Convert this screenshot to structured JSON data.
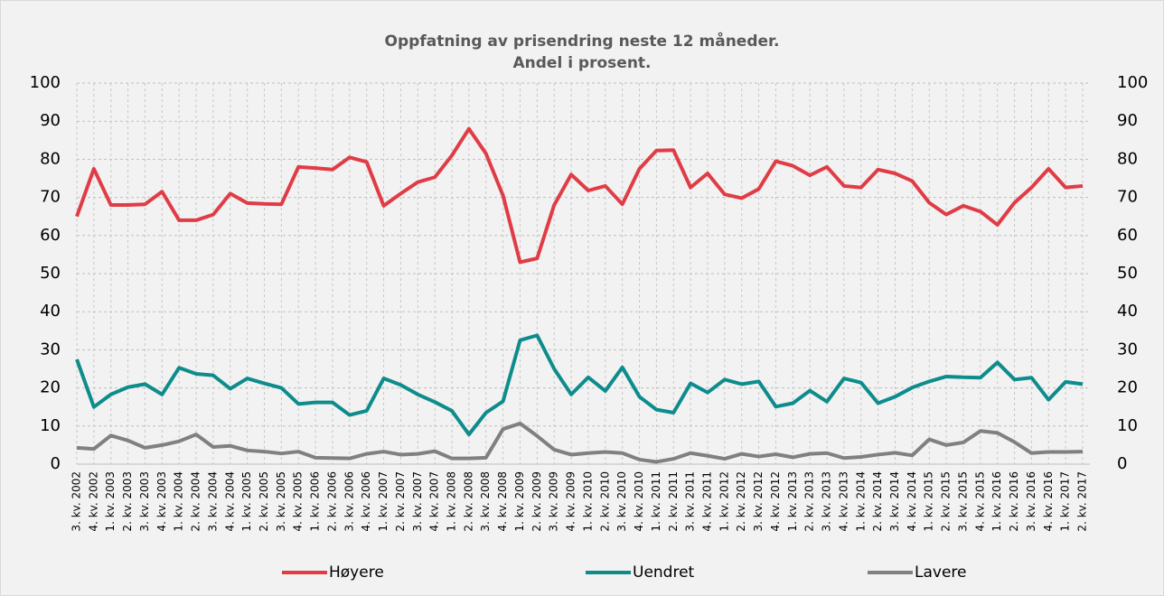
{
  "chart_data": {
    "type": "line",
    "title": [
      "Oppfatning av prisendring neste 12 måneder.",
      "Andel i prosent."
    ],
    "categories": [
      "3. kv. 2002",
      "4. kv. 2002",
      "1. kv. 2003",
      "2. kv. 2003",
      "3. kv. 2003",
      "4. kv. 2003",
      "1. kv. 2004",
      "2. kv. 2004",
      "3. kv. 2004",
      "4. kv. 2004",
      "1. kv. 2005",
      "2. kv. 2005",
      "3. kv. 2005",
      "4. kv. 2005",
      "1. kv. 2006",
      "2. kv. 2006",
      "3. kv. 2006",
      "4. kv. 2006",
      "1. kv. 2007",
      "2. kv. 2007",
      "3. kv. 2007",
      "4. kv. 2007",
      "1. kv. 2008",
      "2. kv. 2008",
      "3. kv. 2008",
      "4. kv. 2008",
      "1. kv. 2009",
      "2. kv. 2009",
      "3. kv. 2009",
      "4. kv. 2009",
      "1. kv. 2010",
      "2. kv. 2010",
      "3. kv. 2010",
      "4. kv. 2010",
      "1. kv. 2011",
      "2. kv. 2011",
      "3. kv. 2011",
      "4. kv. 2011",
      "1. kv. 2012",
      "2. kv. 2012",
      "3. kv. 2012",
      "4. kv. 2012",
      "1. kv. 2013",
      "2. kv. 2013",
      "3. kv. 2013",
      "4. kv. 2013",
      "1. kv. 2014",
      "2. kv. 2014",
      "3. kv. 2014",
      "4. kv. 2014",
      "1. kv. 2015",
      "2. kv. 2015",
      "3. kv. 2015",
      "4. kv. 2015",
      "1. kv. 2016",
      "2. kv. 2016",
      "3. kv. 2016",
      "4. kv. 2016",
      "1. kv. 2017",
      "2. kv. 2017"
    ],
    "series": [
      {
        "name": "Høyere",
        "color": "#e03c46",
        "values": [
          65,
          77.5,
          68,
          68,
          68.2,
          71.5,
          64,
          64,
          65.5,
          71,
          68.5,
          68.3,
          68.2,
          78,
          77.7,
          77.3,
          80.5,
          79.3,
          67.8,
          71,
          74,
          75.3,
          81,
          88,
          81.5,
          70.5,
          53,
          54,
          68,
          76,
          71.8,
          73,
          68.2,
          77.5,
          82.3,
          82.4,
          72.6,
          76.3,
          70.8,
          69.8,
          72.2,
          79.5,
          78.3,
          75.8,
          78,
          73,
          72.6,
          77.3,
          76.3,
          74.3,
          68.6,
          65.5,
          67.8,
          66.3,
          62.8,
          68.6,
          72.6,
          77.5,
          72.6,
          73
        ]
      },
      {
        "name": "Uendret",
        "color": "#0e8c8c",
        "values": [
          27.5,
          15,
          18.3,
          20.2,
          21,
          18.3,
          25.3,
          23.7,
          23.3,
          19.8,
          22.5,
          21.2,
          20,
          15.8,
          16.2,
          16.2,
          12.9,
          14,
          22.5,
          20.8,
          18.3,
          16.3,
          14,
          7.8,
          13.5,
          16.5,
          32.5,
          33.8,
          25,
          18.3,
          22.8,
          19.2,
          25.4,
          17.7,
          14.3,
          13.5,
          21.2,
          18.8,
          22.2,
          21,
          21.7,
          15.1,
          16,
          19.3,
          16.4,
          22.5,
          21.4,
          16,
          17.7,
          20.1,
          21.7,
          23,
          22.8,
          22.7,
          26.7,
          22.2,
          22.7,
          16.9,
          21.6,
          21
        ]
      },
      {
        "name": "Lavere",
        "color": "#808080",
        "values": [
          4.3,
          4,
          7.5,
          6.2,
          4.3,
          5,
          6,
          7.8,
          4.5,
          4.8,
          3.6,
          3.3,
          2.8,
          3.3,
          1.7,
          1.6,
          1.5,
          2.7,
          3.3,
          2.5,
          2.7,
          3.4,
          1.5,
          1.5,
          1.7,
          9.2,
          10.7,
          7.4,
          3.8,
          2.5,
          2.9,
          3.2,
          2.9,
          1.2,
          0.6,
          1.4,
          2.9,
          2.2,
          1.4,
          2.7,
          2,
          2.6,
          1.8,
          2.7,
          2.9,
          1.6,
          1.9,
          2.5,
          3,
          2.3,
          6.5,
          5,
          5.7,
          8.7,
          8.2,
          5.8,
          2.9,
          3.2,
          3.2,
          3.3
        ]
      }
    ],
    "ylim": [
      0,
      100
    ],
    "yticks": [
      0,
      10,
      20,
      30,
      40,
      50,
      60,
      70,
      80,
      90,
      100
    ],
    "y2lim": [
      0,
      100
    ],
    "y2ticks": [
      0,
      10,
      20,
      30,
      40,
      50,
      60,
      70,
      80,
      90,
      100
    ],
    "grid": true,
    "legend": "bottom"
  }
}
